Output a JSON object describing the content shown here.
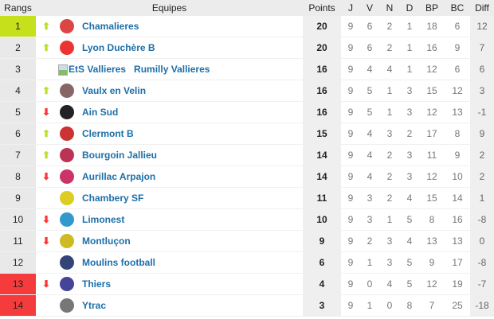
{
  "headers": {
    "rank": "Rangs",
    "team": "Equipes",
    "points": "Points",
    "j": "J",
    "v": "V",
    "n": "N",
    "d": "D",
    "bp": "BP",
    "bc": "BC",
    "diff": "Diff"
  },
  "colors": {
    "promotion": "#c6e01c",
    "relegation": "#f63b3d",
    "up": "#b7e027",
    "down": "#ff3333",
    "link": "#1d6fa8"
  },
  "rows": [
    {
      "rank": "1",
      "trend": "up",
      "logo_color": "#d44",
      "name": "Chamalieres",
      "points": "20",
      "j": "9",
      "v": "6",
      "n": "2",
      "d": "1",
      "bp": "18",
      "bc": "6",
      "diff": "12",
      "zone": "green"
    },
    {
      "rank": "2",
      "trend": "up",
      "logo_color": "#e33",
      "name": "Lyon Duchère B",
      "points": "20",
      "j": "9",
      "v": "6",
      "n": "2",
      "d": "1",
      "bp": "16",
      "bc": "9",
      "diff": "7",
      "zone": ""
    },
    {
      "rank": "3",
      "trend": "",
      "logo_alt": "EtS Vallieres",
      "name": "Rumilly Vallieres",
      "points": "16",
      "j": "9",
      "v": "4",
      "n": "4",
      "d": "1",
      "bp": "12",
      "bc": "6",
      "diff": "6",
      "zone": ""
    },
    {
      "rank": "4",
      "trend": "up",
      "logo_color": "#866",
      "name": "Vaulx en Velin",
      "points": "16",
      "j": "9",
      "v": "5",
      "n": "1",
      "d": "3",
      "bp": "15",
      "bc": "12",
      "diff": "3",
      "zone": ""
    },
    {
      "rank": "5",
      "trend": "down",
      "logo_color": "#222",
      "name": "Ain Sud",
      "points": "16",
      "j": "9",
      "v": "5",
      "n": "1",
      "d": "3",
      "bp": "12",
      "bc": "13",
      "diff": "-1",
      "zone": ""
    },
    {
      "rank": "6",
      "trend": "up",
      "logo_color": "#c33",
      "name": "Clermont B",
      "points": "15",
      "j": "9",
      "v": "4",
      "n": "3",
      "d": "2",
      "bp": "17",
      "bc": "8",
      "diff": "9",
      "zone": ""
    },
    {
      "rank": "7",
      "trend": "up",
      "logo_color": "#b35",
      "name": "Bourgoin Jallieu",
      "points": "14",
      "j": "9",
      "v": "4",
      "n": "2",
      "d": "3",
      "bp": "11",
      "bc": "9",
      "diff": "2",
      "zone": ""
    },
    {
      "rank": "8",
      "trend": "down",
      "logo_color": "#c36",
      "name": "Aurillac Arpajon",
      "points": "14",
      "j": "9",
      "v": "4",
      "n": "2",
      "d": "3",
      "bp": "12",
      "bc": "10",
      "diff": "2",
      "zone": ""
    },
    {
      "rank": "9",
      "trend": "",
      "logo_color": "#dc2",
      "name": "Chambery SF",
      "points": "11",
      "j": "9",
      "v": "3",
      "n": "2",
      "d": "4",
      "bp": "15",
      "bc": "14",
      "diff": "1",
      "zone": ""
    },
    {
      "rank": "10",
      "trend": "down",
      "logo_color": "#39c",
      "name": "Limonest",
      "points": "10",
      "j": "9",
      "v": "3",
      "n": "1",
      "d": "5",
      "bp": "8",
      "bc": "16",
      "diff": "-8",
      "zone": ""
    },
    {
      "rank": "11",
      "trend": "down",
      "logo_color": "#cb2",
      "name": "Montluçon",
      "points": "9",
      "j": "9",
      "v": "2",
      "n": "3",
      "d": "4",
      "bp": "13",
      "bc": "13",
      "diff": "0",
      "zone": ""
    },
    {
      "rank": "12",
      "trend": "",
      "logo_color": "#347",
      "name": "Moulins football",
      "points": "6",
      "j": "9",
      "v": "1",
      "n": "3",
      "d": "5",
      "bp": "9",
      "bc": "17",
      "diff": "-8",
      "zone": ""
    },
    {
      "rank": "13",
      "trend": "down",
      "logo_color": "#449",
      "name": "Thiers",
      "points": "4",
      "j": "9",
      "v": "0",
      "n": "4",
      "d": "5",
      "bp": "12",
      "bc": "19",
      "diff": "-7",
      "zone": "red"
    },
    {
      "rank": "14",
      "trend": "",
      "logo_color": "#777",
      "name": "Ytrac",
      "points": "3",
      "j": "9",
      "v": "1",
      "n": "0",
      "d": "8",
      "bp": "7",
      "bc": "25",
      "diff": "-18",
      "zone": "red"
    }
  ]
}
